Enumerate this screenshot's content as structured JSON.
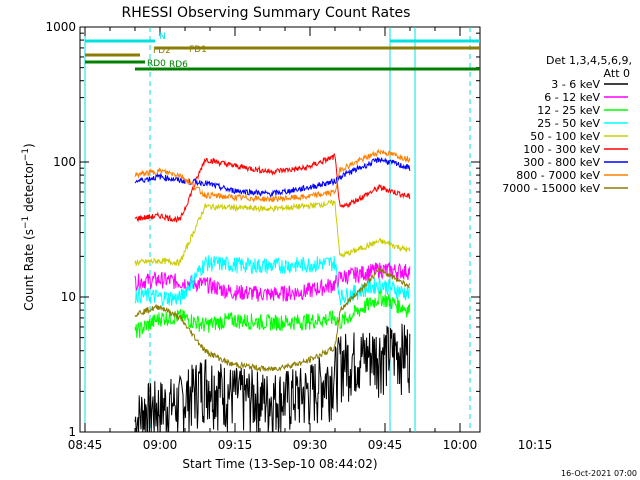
{
  "chart_data": {
    "type": "line",
    "title": "RHESSI Observing Summary Count Rates",
    "xlabel": "Start Time (13-Sep-10 08:44:02)",
    "ylabel": "Count Rate (s⁻¹ detector⁻¹)",
    "x_ticks": [
      "08:45",
      "09:00",
      "09:15",
      "09:30",
      "09:45",
      "10:00",
      "10:15"
    ],
    "y_ticks": [
      "1",
      "10",
      "100",
      "1000"
    ],
    "xlim_minutes_since_0844": [
      0,
      80
    ],
    "ylim": [
      1,
      1000
    ],
    "y_scale": "log",
    "legend_header": [
      "Det 1,3,4,5,6,9,",
      "Att 0"
    ],
    "footer_date": "16-Oct-2021 07:00",
    "flags": [
      {
        "label": "N",
        "color": "#00e0e0",
        "segments": [
          [
            1,
            15
          ],
          [
            62,
            80
          ]
        ]
      },
      {
        "label": "FD1",
        "color": "#8b7d00",
        "segments": [
          [
            15,
            80
          ]
        ]
      },
      {
        "label": "FD2",
        "color": "#8b7d00",
        "segments": [
          [
            1,
            12
          ]
        ]
      },
      {
        "label": "RD0",
        "color": "#008000",
        "segments": [
          [
            1,
            13
          ]
        ]
      },
      {
        "label": "RD6",
        "color": "#008000",
        "segments": [
          [
            11,
            25
          ],
          [
            25,
            52
          ],
          [
            52,
            72
          ],
          [
            72,
            80
          ]
        ]
      }
    ],
    "vertical_lines": [
      {
        "x": 1.0,
        "style": "solid",
        "color": "#00e0e0"
      },
      {
        "x": 14.0,
        "style": "dashed",
        "color": "#00e0e0"
      },
      {
        "x": 62.0,
        "style": "solid",
        "color": "#00e0e0"
      },
      {
        "x": 67.0,
        "style": "solid",
        "color": "#00e0e0"
      },
      {
        "x": 78.0,
        "style": "dashed",
        "color": "#00e0e0"
      }
    ],
    "series": [
      {
        "name": "3 - 6 keV",
        "color": "#000000",
        "x": [
          11,
          13,
          20,
          25,
          30,
          38,
          45,
          51,
          52,
          60,
          66
        ],
        "y": [
          1.2,
          1.5,
          1.7,
          2.5,
          2.0,
          1.8,
          2.0,
          2.8,
          3.5,
          4.0,
          4.2
        ]
      },
      {
        "name": "6 - 12 keV",
        "color": "#ff00ff",
        "x": [
          11,
          16,
          20,
          25,
          30,
          38,
          45,
          51,
          52,
          60,
          66
        ],
        "y": [
          13,
          13.5,
          13,
          12.5,
          11,
          10.5,
          11,
          12.5,
          14,
          16,
          15.5
        ]
      },
      {
        "name": "12 - 25 keV",
        "color": "#00ff00",
        "x": [
          11,
          16,
          20,
          25,
          30,
          38,
          45,
          51,
          52,
          60,
          66
        ],
        "y": [
          5.5,
          7.0,
          7.2,
          6.2,
          6.8,
          6.5,
          6.6,
          7.0,
          6.5,
          10.0,
          8.0
        ]
      },
      {
        "name": "25 - 50 keV",
        "color": "#00ffff",
        "x": [
          11,
          16,
          20,
          25,
          30,
          38,
          45,
          51,
          52,
          60,
          66
        ],
        "y": [
          10.5,
          10,
          9.8,
          18,
          17.5,
          17,
          17.5,
          18,
          10,
          12.5,
          10.5
        ]
      },
      {
        "name": "50 - 100 keV",
        "color": "#cccc00",
        "x": [
          11,
          16,
          20,
          25,
          30,
          38,
          45,
          51,
          52,
          60,
          66
        ],
        "y": [
          18,
          18.5,
          18,
          47,
          46,
          45,
          47,
          50,
          20,
          26,
          22
        ]
      },
      {
        "name": "100 - 300 keV",
        "color": "#ff0000",
        "x": [
          11,
          16,
          20,
          25,
          30,
          38,
          45,
          51,
          52,
          60,
          66
        ],
        "y": [
          38,
          40,
          37,
          105,
          95,
          85,
          90,
          110,
          45,
          65,
          55
        ]
      },
      {
        "name": "300 - 800 keV",
        "color": "#0000ff",
        "x": [
          11,
          16,
          20,
          25,
          30,
          38,
          45,
          51,
          52,
          60,
          66
        ],
        "y": [
          72,
          78,
          73,
          70,
          62,
          58,
          64,
          72,
          78,
          105,
          90
        ]
      },
      {
        "name": "800 - 7000 keV",
        "color": "#ff8000",
        "x": [
          11,
          16,
          20,
          25,
          30,
          38,
          45,
          51,
          52,
          60,
          66
        ],
        "y": [
          80,
          86,
          80,
          57,
          55,
          53,
          55,
          60,
          88,
          120,
          105
        ]
      },
      {
        "name": "7000 - 15000 keV",
        "color": "#8b7d00",
        "x": [
          11,
          16,
          20,
          25,
          30,
          38,
          45,
          51,
          52,
          60,
          66
        ],
        "y": [
          7.5,
          8.5,
          7.0,
          4.0,
          3.2,
          2.9,
          3.3,
          4.2,
          8.0,
          16,
          12
        ]
      }
    ]
  }
}
